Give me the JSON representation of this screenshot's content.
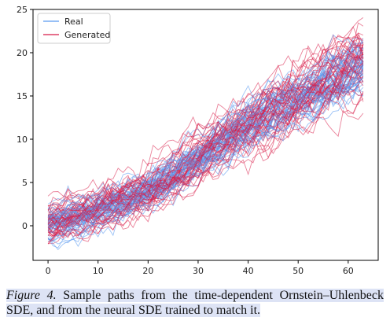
{
  "caption": {
    "label": "Figure 4.",
    "text": " Sample paths from the time-dependent Ornstein–Uhlenbeck SDE, and from the neural SDE trained to match it."
  },
  "chart_data": {
    "type": "line",
    "xlim": [
      -3,
      66
    ],
    "ylim": [
      -4,
      25
    ],
    "x_ticks": [
      0,
      10,
      20,
      30,
      40,
      50,
      60
    ],
    "y_ticks": [
      0,
      5,
      10,
      15,
      20,
      25
    ],
    "grid": false,
    "legend_position": "top-left",
    "n_steps": 63,
    "series": [
      {
        "name": "Real",
        "color": "#5b9bf0",
        "mean": {
          "x": [
            0,
            10,
            20,
            30,
            40,
            50,
            63
          ],
          "y": [
            0,
            1.5,
            3.8,
            7.5,
            11.0,
            14.5,
            18.5
          ]
        },
        "spread": {
          "x": [
            0,
            30,
            63
          ],
          "y": [
            1.2,
            1.8,
            2.5
          ]
        },
        "count": 50
      },
      {
        "name": "Generated",
        "color": "#d81b47",
        "mean": {
          "x": [
            0,
            10,
            20,
            30,
            40,
            50,
            63
          ],
          "y": [
            0,
            1.5,
            3.8,
            7.5,
            11.0,
            14.5,
            18.8
          ]
        },
        "spread": {
          "x": [
            0,
            30,
            63
          ],
          "y": [
            1.3,
            2.0,
            3.0
          ]
        },
        "count": 50
      }
    ]
  }
}
